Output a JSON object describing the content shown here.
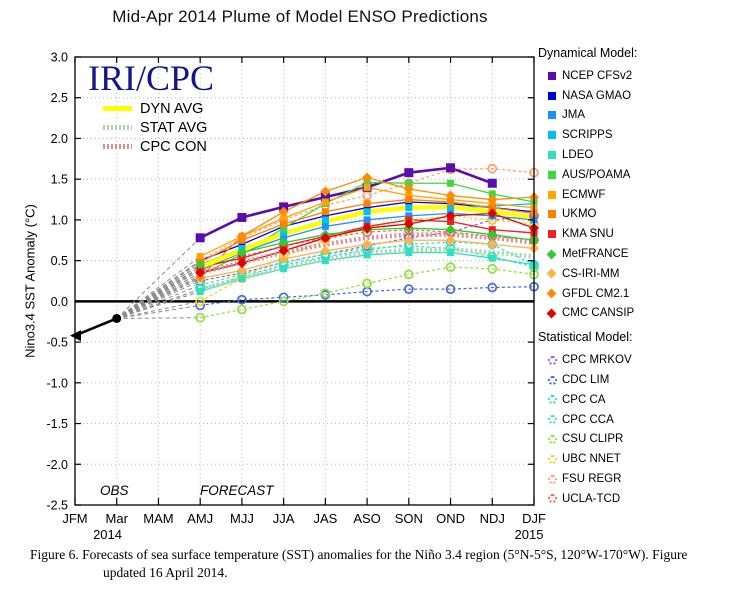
{
  "figure": {
    "watermark": "IRI/CPC"
  },
  "legend": {
    "dynamical_header": "Dynamical Model:",
    "statistical_header": "Statistical Model:"
  },
  "caption": {
    "text": "Figure 6. Forecasts of sea surface temperature (SST) anomalies for the Niño 3.4 region (5°N-5°S, 120°W-170°W).  Figure updated 16 April 2014."
  },
  "chart_data": {
    "type": "line",
    "title": "Mid-Apr 2014 Plume of Model ENSO Predictions",
    "xlabel": "",
    "ylabel": "Nino3.4 SST Anomaly (°C)",
    "ylim": [
      -2.5,
      3.0
    ],
    "ytick_step": 0.5,
    "grid": "dotted",
    "legend_position": "right",
    "x_categories": [
      "JFM",
      "Mar",
      "MAM",
      "AMJ",
      "MJJ",
      "JJA",
      "JAS",
      "ASO",
      "SON",
      "OND",
      "NDJ",
      "DJF"
    ],
    "x_year_labels": [
      {
        "label": "2014",
        "x_index": 0.78
      },
      {
        "label": "2015",
        "x_index": 10.88
      }
    ],
    "annotations": {
      "obs_region": "OBS",
      "forecast_region": "FORECAST"
    },
    "obs_series": {
      "name": "OBS",
      "color": "#000000",
      "x": [
        "JFM",
        "Mar"
      ],
      "values": [
        -0.42,
        -0.21
      ]
    },
    "forecast_start_index": 3,
    "forecast_x": [
      "AMJ",
      "MJJ",
      "JJA",
      "JAS",
      "ASO",
      "SON",
      "OND",
      "NDJ",
      "DJF"
    ],
    "averages": [
      {
        "label": "DYN AVG",
        "color": "#FFFF00",
        "style": "solid",
        "values": [
          0.42,
          0.63,
          0.83,
          0.98,
          1.1,
          1.15,
          1.16,
          1.1,
          1.03
        ]
      },
      {
        "label": "STAT AVG",
        "color": "#A8D8A8",
        "style": "dotted",
        "values": [
          0.15,
          0.28,
          0.42,
          0.52,
          0.6,
          0.63,
          0.64,
          0.6,
          0.55
        ]
      },
      {
        "label": "CPC CON",
        "color": "#D89090",
        "style": "dotted",
        "values": [
          0.35,
          0.48,
          0.6,
          0.7,
          0.78,
          0.82,
          0.82,
          0.78,
          0.72
        ]
      }
    ],
    "dynamical_models": [
      {
        "name": "NCEP CFSv2",
        "color": "#5A0DAD",
        "marker": "square",
        "bold": true,
        "values": [
          0.78,
          1.03,
          1.16,
          1.28,
          1.4,
          1.58,
          1.64,
          1.45,
          null
        ]
      },
      {
        "name": "NASA GMAO",
        "color": "#0000E0",
        "marker": "square",
        "values": [
          0.5,
          0.7,
          0.92,
          1.05,
          1.15,
          1.22,
          1.2,
          1.15,
          1.1
        ]
      },
      {
        "name": "JMA",
        "color": "#1E90FF",
        "marker": "square",
        "values": [
          0.38,
          0.6,
          0.78,
          0.92,
          1.0,
          1.05,
          1.08,
          1.05,
          1.0
        ]
      },
      {
        "name": "SCRIPPS",
        "color": "#00BFFF",
        "marker": "square",
        "values": [
          0.45,
          0.65,
          0.85,
          1.0,
          1.1,
          1.15,
          1.15,
          1.17,
          1.2
        ]
      },
      {
        "name": "LDEO",
        "color": "#2FDFC3",
        "marker": "square",
        "values": [
          0.12,
          0.28,
          0.4,
          0.5,
          0.57,
          0.6,
          0.6,
          0.53,
          0.45
        ]
      },
      {
        "name": "AUS/POAMA",
        "color": "#3BDB3B",
        "marker": "square",
        "values": [
          0.32,
          0.58,
          0.9,
          1.2,
          1.46,
          1.45,
          1.45,
          1.32,
          1.22
        ]
      },
      {
        "name": "ECMWF",
        "color": "#FFA500",
        "marker": "square",
        "values": [
          0.55,
          0.8,
          1.02,
          1.22,
          1.4,
          1.3,
          1.25,
          1.2,
          1.15
        ]
      },
      {
        "name": "UKMO",
        "color": "#FF7F00",
        "marker": "square",
        "values": [
          0.48,
          0.75,
          0.95,
          1.1,
          1.2,
          1.25,
          1.22,
          1.15,
          1.08
        ]
      },
      {
        "name": "KMA SNU",
        "color": "#E82222",
        "marker": "square",
        "values": [
          0.42,
          0.53,
          0.68,
          0.8,
          0.92,
          1.0,
          0.98,
          0.88,
          0.84
        ]
      },
      {
        "name": "MetFRANCE",
        "color": "#2ECC2E",
        "marker": "diamond",
        "values": [
          0.45,
          0.6,
          0.72,
          0.82,
          0.88,
          0.9,
          0.88,
          0.82,
          0.75
        ]
      },
      {
        "name": "CS-IRI-MM",
        "color": "#FFB347",
        "marker": "diamond",
        "values": [
          0.28,
          0.38,
          0.52,
          0.62,
          0.7,
          0.75,
          0.75,
          0.7,
          0.65
        ]
      },
      {
        "name": "GFDL CM2.1",
        "color": "#FF8C00",
        "marker": "diamond",
        "values": [
          0.3,
          0.8,
          1.1,
          1.35,
          1.52,
          1.38,
          1.3,
          1.25,
          1.28
        ]
      },
      {
        "name": "CMC CANSIP",
        "color": "#E00000",
        "marker": "diamond",
        "values": [
          0.35,
          0.47,
          0.62,
          0.78,
          0.9,
          0.95,
          1.05,
          1.08,
          0.9
        ]
      }
    ],
    "statistical_models": [
      {
        "name": "CPC MRKOV",
        "color": "#9B59D0",
        "marker": "circle-open",
        "values": [
          0.25,
          0.35,
          0.48,
          0.58,
          0.68,
          0.78,
          0.85,
          1.0,
          1.05
        ]
      },
      {
        "name": "CDC LIM",
        "color": "#4169E1",
        "marker": "circle-open",
        "values": [
          -0.05,
          0.02,
          0.05,
          0.08,
          0.12,
          0.15,
          0.15,
          0.17,
          0.18
        ]
      },
      {
        "name": "CPC CA",
        "color": "#30D5E8",
        "marker": "circle-open",
        "values": [
          0.15,
          0.3,
          0.45,
          0.55,
          0.63,
          0.7,
          0.73,
          0.7,
          0.45
        ]
      },
      {
        "name": "CPC CCA",
        "color": "#3BE8A0",
        "marker": "circle-open",
        "values": [
          0.2,
          0.33,
          0.48,
          0.58,
          0.65,
          0.68,
          0.65,
          0.55,
          0.42
        ]
      },
      {
        "name": "CSU CLIPR",
        "color": "#8FE03A",
        "marker": "circle-open",
        "values": [
          -0.2,
          -0.1,
          0.0,
          0.1,
          0.22,
          0.33,
          0.42,
          0.4,
          0.33
        ]
      },
      {
        "name": "UBC NNET",
        "color": "#F0D020",
        "marker": "circle-open",
        "values": [
          0.0,
          0.28,
          0.55,
          0.75,
          0.9,
          1.0,
          1.05,
          1.0,
          0.95
        ]
      },
      {
        "name": "FSU REGR",
        "color": "#FF9E6B",
        "marker": "circle-open",
        "values": [
          0.5,
          0.78,
          1.0,
          1.18,
          1.3,
          1.45,
          1.62,
          1.63,
          1.58
        ]
      },
      {
        "name": "UCLA-TCD",
        "color": "#FF5A5A",
        "marker": "circle-open",
        "values": [
          0.4,
          0.55,
          0.68,
          0.78,
          0.85,
          0.88,
          0.85,
          0.8,
          0.75
        ]
      }
    ]
  }
}
